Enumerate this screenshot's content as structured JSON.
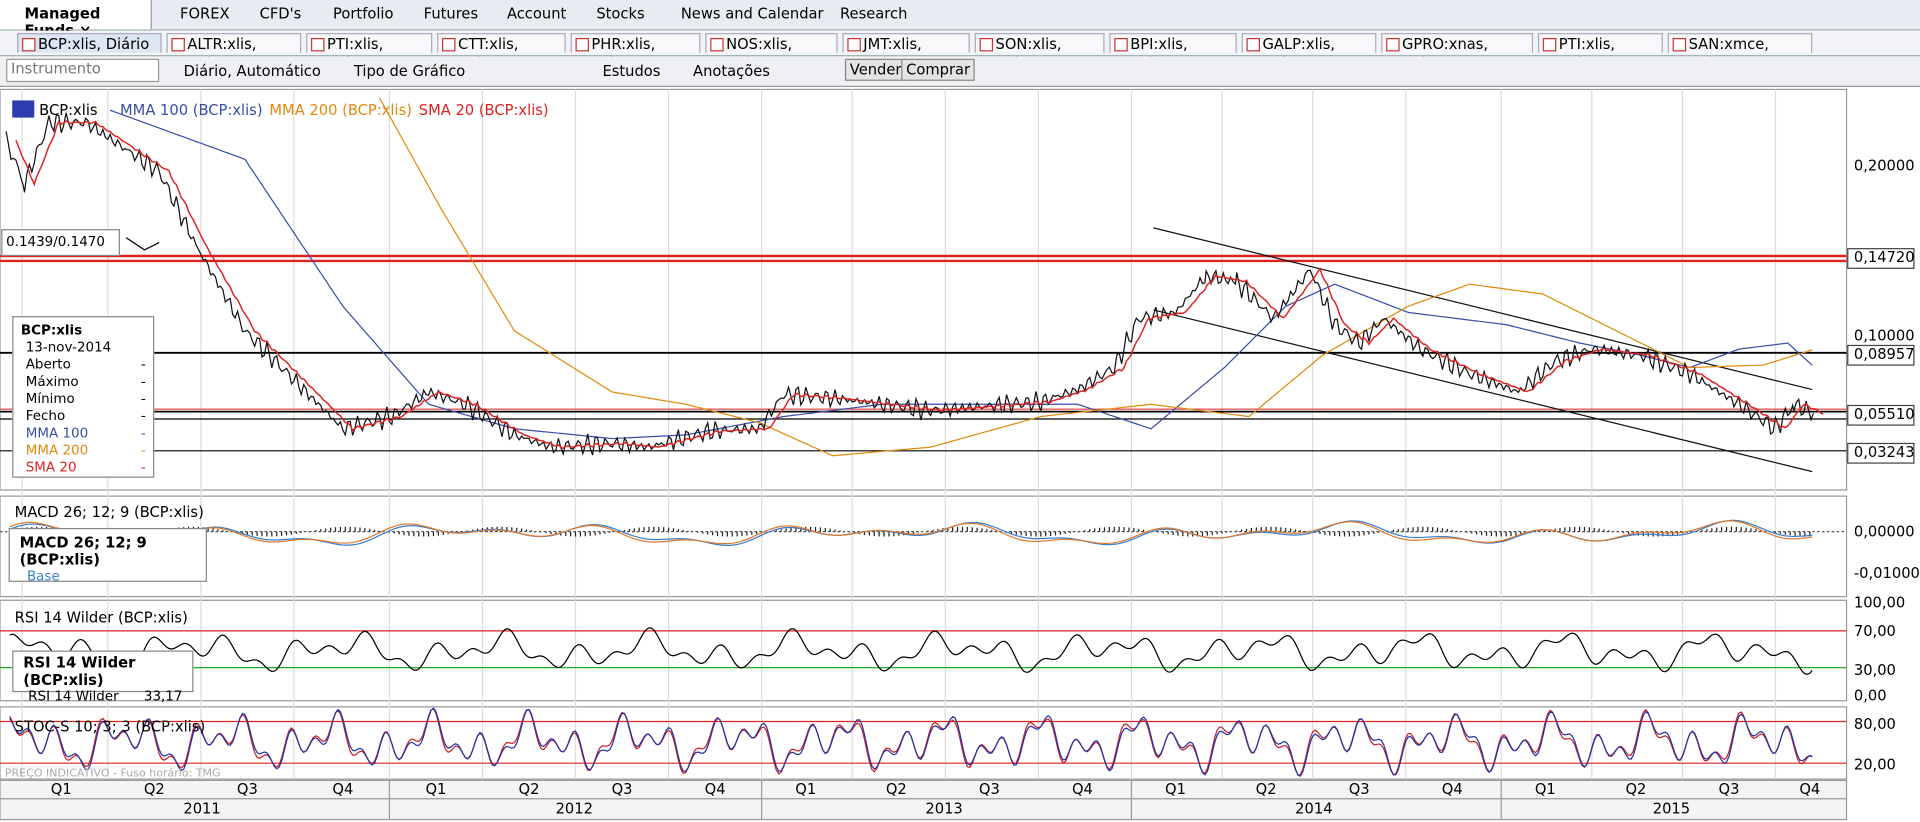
{
  "tabs": {
    "top": [
      "Managed Funds",
      "FOREX",
      "CFD's",
      "Portfolio",
      "Futures",
      "Account",
      "Stocks",
      "News and Calendar",
      "Research"
    ],
    "instruments": [
      "BCP:xlis, Diário",
      "ALTR:xlis, Diário",
      "PTI:xlis, Diário",
      "CTT:xlis, Diário",
      "PHR:xlis, Diário",
      "NOS:xlis, Diário",
      "JMT:xlis, Diário",
      "SON:xlis, Diário",
      "BPI:xlis, Diário",
      "GALP:xlis, Diário",
      "GPRO:xnas, Diário",
      "PTI:xlis, Diário",
      "SAN:xmce, Diário"
    ]
  },
  "toolbar": {
    "instrument_placeholder": "Instrumento",
    "period": "Diário, Automático",
    "chart_type": "Tipo de Gráfico",
    "studies": "Estudos",
    "annotations": "Anotações",
    "sell": "Vender",
    "buy": "Comprar"
  },
  "chart": {
    "legend": [
      "BCP:xlis",
      "MMA 100 (BCP:xlis)",
      "MMA 200 (BCP:xlis)",
      "SMA 20 (BCP:xlis)"
    ],
    "price_axis": [
      "0,20000",
      "0,14720",
      "0,10000",
      "0,08957",
      "0,05510",
      "0,03243"
    ],
    "quote_box": "0.1439/0.1470"
  },
  "info_box": {
    "symbol": "BCP:xlis",
    "date": "13-nov-2014",
    "rows": [
      [
        "Aberto",
        "-"
      ],
      [
        "Máximo",
        "-"
      ],
      [
        "Mínimo",
        "-"
      ],
      [
        "Fecho",
        "-"
      ],
      [
        "MMA 100",
        "-"
      ],
      [
        "MMA 200",
        "-"
      ],
      [
        "SMA 20",
        "-"
      ]
    ]
  },
  "macd": {
    "title": "MACD 26; 12; 9 (BCP:xlis)",
    "axis": [
      "0,00000",
      "-0,01000"
    ],
    "box_title": "MACD 26; 12; 9 (BCP:xlis)",
    "box_row": "Base"
  },
  "rsi": {
    "title": "RSI 14 Wilder (BCP:xlis)",
    "axis": [
      "100,00",
      "70,00",
      "30,00",
      "0,00"
    ],
    "box_title": "RSI 14 Wilder (BCP:xlis)",
    "box_label": "RSI 14 Wilder",
    "box_value": "33,17"
  },
  "stoch": {
    "title": "STOC-S 10; 3; 3 (BCP:xlis)",
    "axis": [
      "80,00",
      "20,00"
    ]
  },
  "footer_note": "PREÇO INDICATIVO - Fuso horário: TMG",
  "x_axis": {
    "quarters": [
      "Q1",
      "Q2",
      "Q3",
      "Q4",
      "Q1",
      "Q2",
      "Q3",
      "Q4",
      "Q1",
      "Q2",
      "Q3",
      "Q4",
      "Q1",
      "Q2",
      "Q3",
      "Q4",
      "Q1",
      "Q2",
      "Q3",
      "Q4"
    ],
    "years": [
      "2011",
      "2012",
      "2013",
      "2014",
      "2015"
    ]
  }
}
